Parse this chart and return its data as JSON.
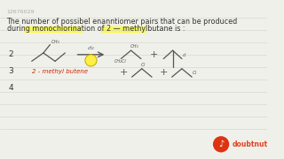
{
  "bg_color": "#f0f0eb",
  "line_color_bg": "#d8d8d0",
  "title_line1": "The number of possibel enanntiomer pairs that can be produced",
  "title_line2": "during monochlorination of 2 — methylbutane is :",
  "title_color": "#333333",
  "title_fontsize": 5.8,
  "id_text": "12676029",
  "id_color": "#aaaaaa",
  "id_fontsize": 4.5,
  "highlight_color": "#ffff00",
  "stroke_color": "#555555",
  "red_text_color": "#cc2200",
  "numbers": [
    "2",
    "3",
    "4"
  ],
  "number_fontsize": 6.5,
  "arrow_color": "#555555",
  "cl2_label": "cl₂",
  "dot_color": "#ffee44",
  "dot_edge_color": "#bbaa00",
  "logo_text": "doubtnut",
  "logo_color": "#dd4422",
  "logo_fontsize": 5.5
}
